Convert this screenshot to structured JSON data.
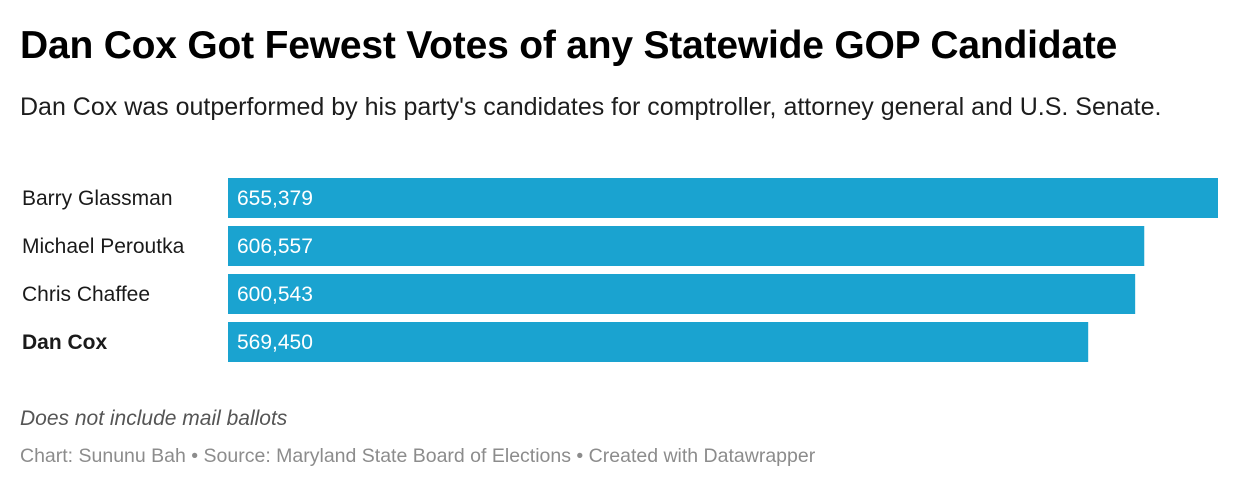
{
  "title": "Dan Cox Got Fewest Votes of any Statewide GOP Candidate",
  "subtitle": "Dan Cox was outperformed by his party's candidates for comptroller, attorney general and U.S. Senate.",
  "notes": "Does not include mail ballots",
  "footer": {
    "chart_by": "Chart: Sununu Bah",
    "separator_1": "•",
    "source": "Source: Maryland State Board of Elections",
    "separator_2": "•",
    "created_with": "Created with Datawrapper"
  },
  "chart_data": {
    "type": "bar",
    "orientation": "horizontal",
    "categories": [
      "Barry Glassman",
      "Michael Peroutka",
      "Chris Chaffee",
      "Dan Cox"
    ],
    "values": [
      655379,
      606557,
      600543,
      569450
    ],
    "value_labels": [
      "655,379",
      "606,557",
      "600,543",
      "569,450"
    ],
    "highlighted": [
      "Dan Cox"
    ],
    "bar_color": "#1aa3d0",
    "grid": false
  }
}
